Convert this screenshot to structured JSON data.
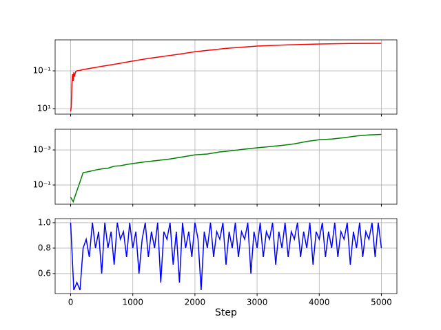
{
  "chart_data": [
    {
      "type": "line",
      "log_y": true,
      "grid": true,
      "xlim": [
        -250,
        5250
      ],
      "ylim": [
        19.5,
        0.0023
      ],
      "xticks": [
        0,
        1000,
        2000,
        3000,
        4000,
        5000
      ],
      "yticks": [
        {
          "value": 10,
          "label": "10¹"
        },
        {
          "value": 0.1,
          "label": "10⁻¹"
        }
      ],
      "x": [
        0,
        10,
        20,
        30,
        40,
        50,
        60,
        80,
        100,
        150,
        200,
        300,
        500,
        750,
        1000,
        1250,
        1500,
        1750,
        2000,
        2500,
        3000,
        3500,
        4000,
        4500,
        5000
      ],
      "series": [
        {
          "color": "#ff0000",
          "values": [
            14,
            8,
            0.5,
            0.15,
            0.35,
            0.12,
            0.2,
            0.11,
            0.1,
            0.095,
            0.085,
            0.075,
            0.058,
            0.042,
            0.03,
            0.022,
            0.017,
            0.013,
            0.0098,
            0.0065,
            0.0049,
            0.0042,
            0.0038,
            0.0036,
            0.0035
          ]
        }
      ]
    },
    {
      "type": "line",
      "log_y": true,
      "grid": true,
      "xlim": [
        -250,
        5250
      ],
      "ylim": [
        1.25,
        6.6e-05
      ],
      "xticks": [
        0,
        1000,
        2000,
        3000,
        4000,
        5000
      ],
      "yticks": [
        {
          "value": 0.1,
          "label": "10⁻¹"
        },
        {
          "value": 0.001,
          "label": "10⁻³"
        }
      ],
      "x": [
        0,
        40,
        200,
        300,
        400,
        500,
        600,
        700,
        800,
        900,
        1000,
        1200,
        1400,
        1600,
        1800,
        2000,
        2200,
        2400,
        2600,
        2800,
        3000,
        3200,
        3400,
        3600,
        3800,
        4000,
        4200,
        4400,
        4600,
        4800,
        5000
      ],
      "series": [
        {
          "color": "#008000",
          "values": [
            0.5,
            0.9,
            0.02,
            0.017,
            0.014,
            0.012,
            0.011,
            0.0085,
            0.008,
            0.0068,
            0.006,
            0.0048,
            0.004,
            0.0033,
            0.0025,
            0.0019,
            0.0017,
            0.0013,
            0.0011,
            0.0009,
            0.00076,
            0.00065,
            0.00055,
            0.00045,
            0.00033,
            0.00026,
            0.00024,
            0.0002,
            0.00016,
            0.00014,
            0.00013
          ]
        }
      ]
    },
    {
      "type": "line",
      "grid": true,
      "xlim": [
        -250,
        5250
      ],
      "ylim": [
        0.443,
        1.032
      ],
      "xlabel": "Step",
      "xticks": [
        0,
        1000,
        2000,
        3000,
        4000,
        5000
      ],
      "yticks": [
        0.6,
        0.8,
        {
          "value": 1,
          "label": "1.0"
        }
      ],
      "x": [
        0,
        50,
        100,
        150,
        200,
        250,
        300,
        350,
        400,
        450,
        500,
        550,
        600,
        650,
        700,
        750,
        800,
        850,
        900,
        950,
        1000,
        1050,
        1100,
        1150,
        1200,
        1250,
        1300,
        1350,
        1400,
        1450,
        1500,
        1550,
        1600,
        1650,
        1700,
        1750,
        1800,
        1850,
        1900,
        1950,
        2000,
        2050,
        2100,
        2150,
        2200,
        2250,
        2300,
        2350,
        2400,
        2450,
        2500,
        2550,
        2600,
        2650,
        2700,
        2750,
        2800,
        2850,
        2900,
        2950,
        3000,
        3050,
        3100,
        3150,
        3200,
        3250,
        3300,
        3350,
        3400,
        3450,
        3500,
        3550,
        3600,
        3650,
        3700,
        3750,
        3800,
        3850,
        3900,
        3950,
        4000,
        4050,
        4100,
        4150,
        4200,
        4250,
        4300,
        4350,
        4400,
        4450,
        4500,
        4550,
        4600,
        4650,
        4700,
        4750,
        4800,
        4850,
        4900,
        4950,
        5000
      ],
      "series": [
        {
          "color": "#0000ff",
          "values": [
            1.0,
            0.47,
            0.53,
            0.47,
            0.8,
            0.87,
            0.73,
            1.0,
            0.8,
            0.93,
            0.6,
            1.0,
            0.8,
            0.93,
            0.67,
            1.0,
            0.87,
            0.93,
            0.73,
            1.0,
            0.8,
            0.93,
            0.6,
            0.87,
            1.0,
            0.73,
            0.93,
            0.8,
            1.0,
            0.53,
            0.93,
            0.87,
            1.0,
            0.67,
            0.93,
            0.53,
            1.0,
            0.8,
            0.93,
            0.73,
            1.0,
            0.87,
            0.47,
            0.93,
            0.8,
            1.0,
            0.73,
            0.93,
            0.87,
            1.0,
            0.67,
            0.93,
            0.8,
            1.0,
            0.73,
            0.93,
            0.87,
            1.0,
            0.6,
            0.93,
            0.8,
            1.0,
            0.73,
            0.93,
            0.87,
            1.0,
            0.67,
            0.93,
            0.8,
            1.0,
            0.73,
            0.93,
            0.87,
            1.0,
            0.73,
            0.93,
            0.8,
            1.0,
            0.67,
            0.93,
            0.87,
            1.0,
            0.73,
            0.93,
            0.8,
            1.0,
            0.73,
            0.93,
            0.87,
            1.0,
            0.67,
            0.93,
            0.8,
            1.0,
            0.73,
            0.93,
            0.87,
            1.0,
            0.73,
            1.0,
            0.8
          ]
        }
      ]
    }
  ]
}
